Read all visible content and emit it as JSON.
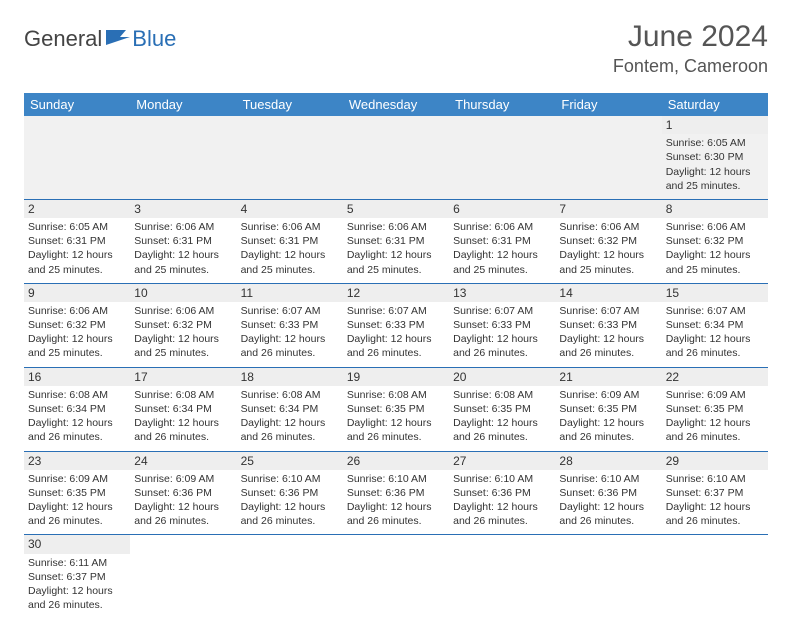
{
  "logo": {
    "general": "General",
    "blue": "Blue"
  },
  "header": {
    "month_year": "June 2024",
    "location": "Fontem, Cameroon"
  },
  "columns": [
    "Sunday",
    "Monday",
    "Tuesday",
    "Wednesday",
    "Thursday",
    "Friday",
    "Saturday"
  ],
  "colors": {
    "header_bg": "#3d85c6",
    "header_text": "#ffffff",
    "row_divider": "#2a6fb5",
    "daynum_bg": "#eeeeee",
    "empty_bg": "#f1f1f1",
    "logo_blue": "#2a6fb5",
    "logo_text": "#444444",
    "body_text": "#333333",
    "title_text": "#555555"
  },
  "typography": {
    "month_year_fontsize": 30,
    "location_fontsize": 18,
    "column_header_fontsize": 13,
    "cell_fontsize": 10.5,
    "daynum_fontsize": 12,
    "font_family": "Arial"
  },
  "weeks": [
    [
      null,
      null,
      null,
      null,
      null,
      null,
      {
        "day": "1",
        "sunrise": "Sunrise: 6:05 AM",
        "sunset": "Sunset: 6:30 PM",
        "daylight1": "Daylight: 12 hours",
        "daylight2": "and 25 minutes."
      }
    ],
    [
      {
        "day": "2",
        "sunrise": "Sunrise: 6:05 AM",
        "sunset": "Sunset: 6:31 PM",
        "daylight1": "Daylight: 12 hours",
        "daylight2": "and 25 minutes."
      },
      {
        "day": "3",
        "sunrise": "Sunrise: 6:06 AM",
        "sunset": "Sunset: 6:31 PM",
        "daylight1": "Daylight: 12 hours",
        "daylight2": "and 25 minutes."
      },
      {
        "day": "4",
        "sunrise": "Sunrise: 6:06 AM",
        "sunset": "Sunset: 6:31 PM",
        "daylight1": "Daylight: 12 hours",
        "daylight2": "and 25 minutes."
      },
      {
        "day": "5",
        "sunrise": "Sunrise: 6:06 AM",
        "sunset": "Sunset: 6:31 PM",
        "daylight1": "Daylight: 12 hours",
        "daylight2": "and 25 minutes."
      },
      {
        "day": "6",
        "sunrise": "Sunrise: 6:06 AM",
        "sunset": "Sunset: 6:31 PM",
        "daylight1": "Daylight: 12 hours",
        "daylight2": "and 25 minutes."
      },
      {
        "day": "7",
        "sunrise": "Sunrise: 6:06 AM",
        "sunset": "Sunset: 6:32 PM",
        "daylight1": "Daylight: 12 hours",
        "daylight2": "and 25 minutes."
      },
      {
        "day": "8",
        "sunrise": "Sunrise: 6:06 AM",
        "sunset": "Sunset: 6:32 PM",
        "daylight1": "Daylight: 12 hours",
        "daylight2": "and 25 minutes."
      }
    ],
    [
      {
        "day": "9",
        "sunrise": "Sunrise: 6:06 AM",
        "sunset": "Sunset: 6:32 PM",
        "daylight1": "Daylight: 12 hours",
        "daylight2": "and 25 minutes."
      },
      {
        "day": "10",
        "sunrise": "Sunrise: 6:06 AM",
        "sunset": "Sunset: 6:32 PM",
        "daylight1": "Daylight: 12 hours",
        "daylight2": "and 25 minutes."
      },
      {
        "day": "11",
        "sunrise": "Sunrise: 6:07 AM",
        "sunset": "Sunset: 6:33 PM",
        "daylight1": "Daylight: 12 hours",
        "daylight2": "and 26 minutes."
      },
      {
        "day": "12",
        "sunrise": "Sunrise: 6:07 AM",
        "sunset": "Sunset: 6:33 PM",
        "daylight1": "Daylight: 12 hours",
        "daylight2": "and 26 minutes."
      },
      {
        "day": "13",
        "sunrise": "Sunrise: 6:07 AM",
        "sunset": "Sunset: 6:33 PM",
        "daylight1": "Daylight: 12 hours",
        "daylight2": "and 26 minutes."
      },
      {
        "day": "14",
        "sunrise": "Sunrise: 6:07 AM",
        "sunset": "Sunset: 6:33 PM",
        "daylight1": "Daylight: 12 hours",
        "daylight2": "and 26 minutes."
      },
      {
        "day": "15",
        "sunrise": "Sunrise: 6:07 AM",
        "sunset": "Sunset: 6:34 PM",
        "daylight1": "Daylight: 12 hours",
        "daylight2": "and 26 minutes."
      }
    ],
    [
      {
        "day": "16",
        "sunrise": "Sunrise: 6:08 AM",
        "sunset": "Sunset: 6:34 PM",
        "daylight1": "Daylight: 12 hours",
        "daylight2": "and 26 minutes."
      },
      {
        "day": "17",
        "sunrise": "Sunrise: 6:08 AM",
        "sunset": "Sunset: 6:34 PM",
        "daylight1": "Daylight: 12 hours",
        "daylight2": "and 26 minutes."
      },
      {
        "day": "18",
        "sunrise": "Sunrise: 6:08 AM",
        "sunset": "Sunset: 6:34 PM",
        "daylight1": "Daylight: 12 hours",
        "daylight2": "and 26 minutes."
      },
      {
        "day": "19",
        "sunrise": "Sunrise: 6:08 AM",
        "sunset": "Sunset: 6:35 PM",
        "daylight1": "Daylight: 12 hours",
        "daylight2": "and 26 minutes."
      },
      {
        "day": "20",
        "sunrise": "Sunrise: 6:08 AM",
        "sunset": "Sunset: 6:35 PM",
        "daylight1": "Daylight: 12 hours",
        "daylight2": "and 26 minutes."
      },
      {
        "day": "21",
        "sunrise": "Sunrise: 6:09 AM",
        "sunset": "Sunset: 6:35 PM",
        "daylight1": "Daylight: 12 hours",
        "daylight2": "and 26 minutes."
      },
      {
        "day": "22",
        "sunrise": "Sunrise: 6:09 AM",
        "sunset": "Sunset: 6:35 PM",
        "daylight1": "Daylight: 12 hours",
        "daylight2": "and 26 minutes."
      }
    ],
    [
      {
        "day": "23",
        "sunrise": "Sunrise: 6:09 AM",
        "sunset": "Sunset: 6:35 PM",
        "daylight1": "Daylight: 12 hours",
        "daylight2": "and 26 minutes."
      },
      {
        "day": "24",
        "sunrise": "Sunrise: 6:09 AM",
        "sunset": "Sunset: 6:36 PM",
        "daylight1": "Daylight: 12 hours",
        "daylight2": "and 26 minutes."
      },
      {
        "day": "25",
        "sunrise": "Sunrise: 6:10 AM",
        "sunset": "Sunset: 6:36 PM",
        "daylight1": "Daylight: 12 hours",
        "daylight2": "and 26 minutes."
      },
      {
        "day": "26",
        "sunrise": "Sunrise: 6:10 AM",
        "sunset": "Sunset: 6:36 PM",
        "daylight1": "Daylight: 12 hours",
        "daylight2": "and 26 minutes."
      },
      {
        "day": "27",
        "sunrise": "Sunrise: 6:10 AM",
        "sunset": "Sunset: 6:36 PM",
        "daylight1": "Daylight: 12 hours",
        "daylight2": "and 26 minutes."
      },
      {
        "day": "28",
        "sunrise": "Sunrise: 6:10 AM",
        "sunset": "Sunset: 6:36 PM",
        "daylight1": "Daylight: 12 hours",
        "daylight2": "and 26 minutes."
      },
      {
        "day": "29",
        "sunrise": "Sunrise: 6:10 AM",
        "sunset": "Sunset: 6:37 PM",
        "daylight1": "Daylight: 12 hours",
        "daylight2": "and 26 minutes."
      }
    ],
    [
      {
        "day": "30",
        "sunrise": "Sunrise: 6:11 AM",
        "sunset": "Sunset: 6:37 PM",
        "daylight1": "Daylight: 12 hours",
        "daylight2": "and 26 minutes."
      },
      null,
      null,
      null,
      null,
      null,
      null
    ]
  ]
}
